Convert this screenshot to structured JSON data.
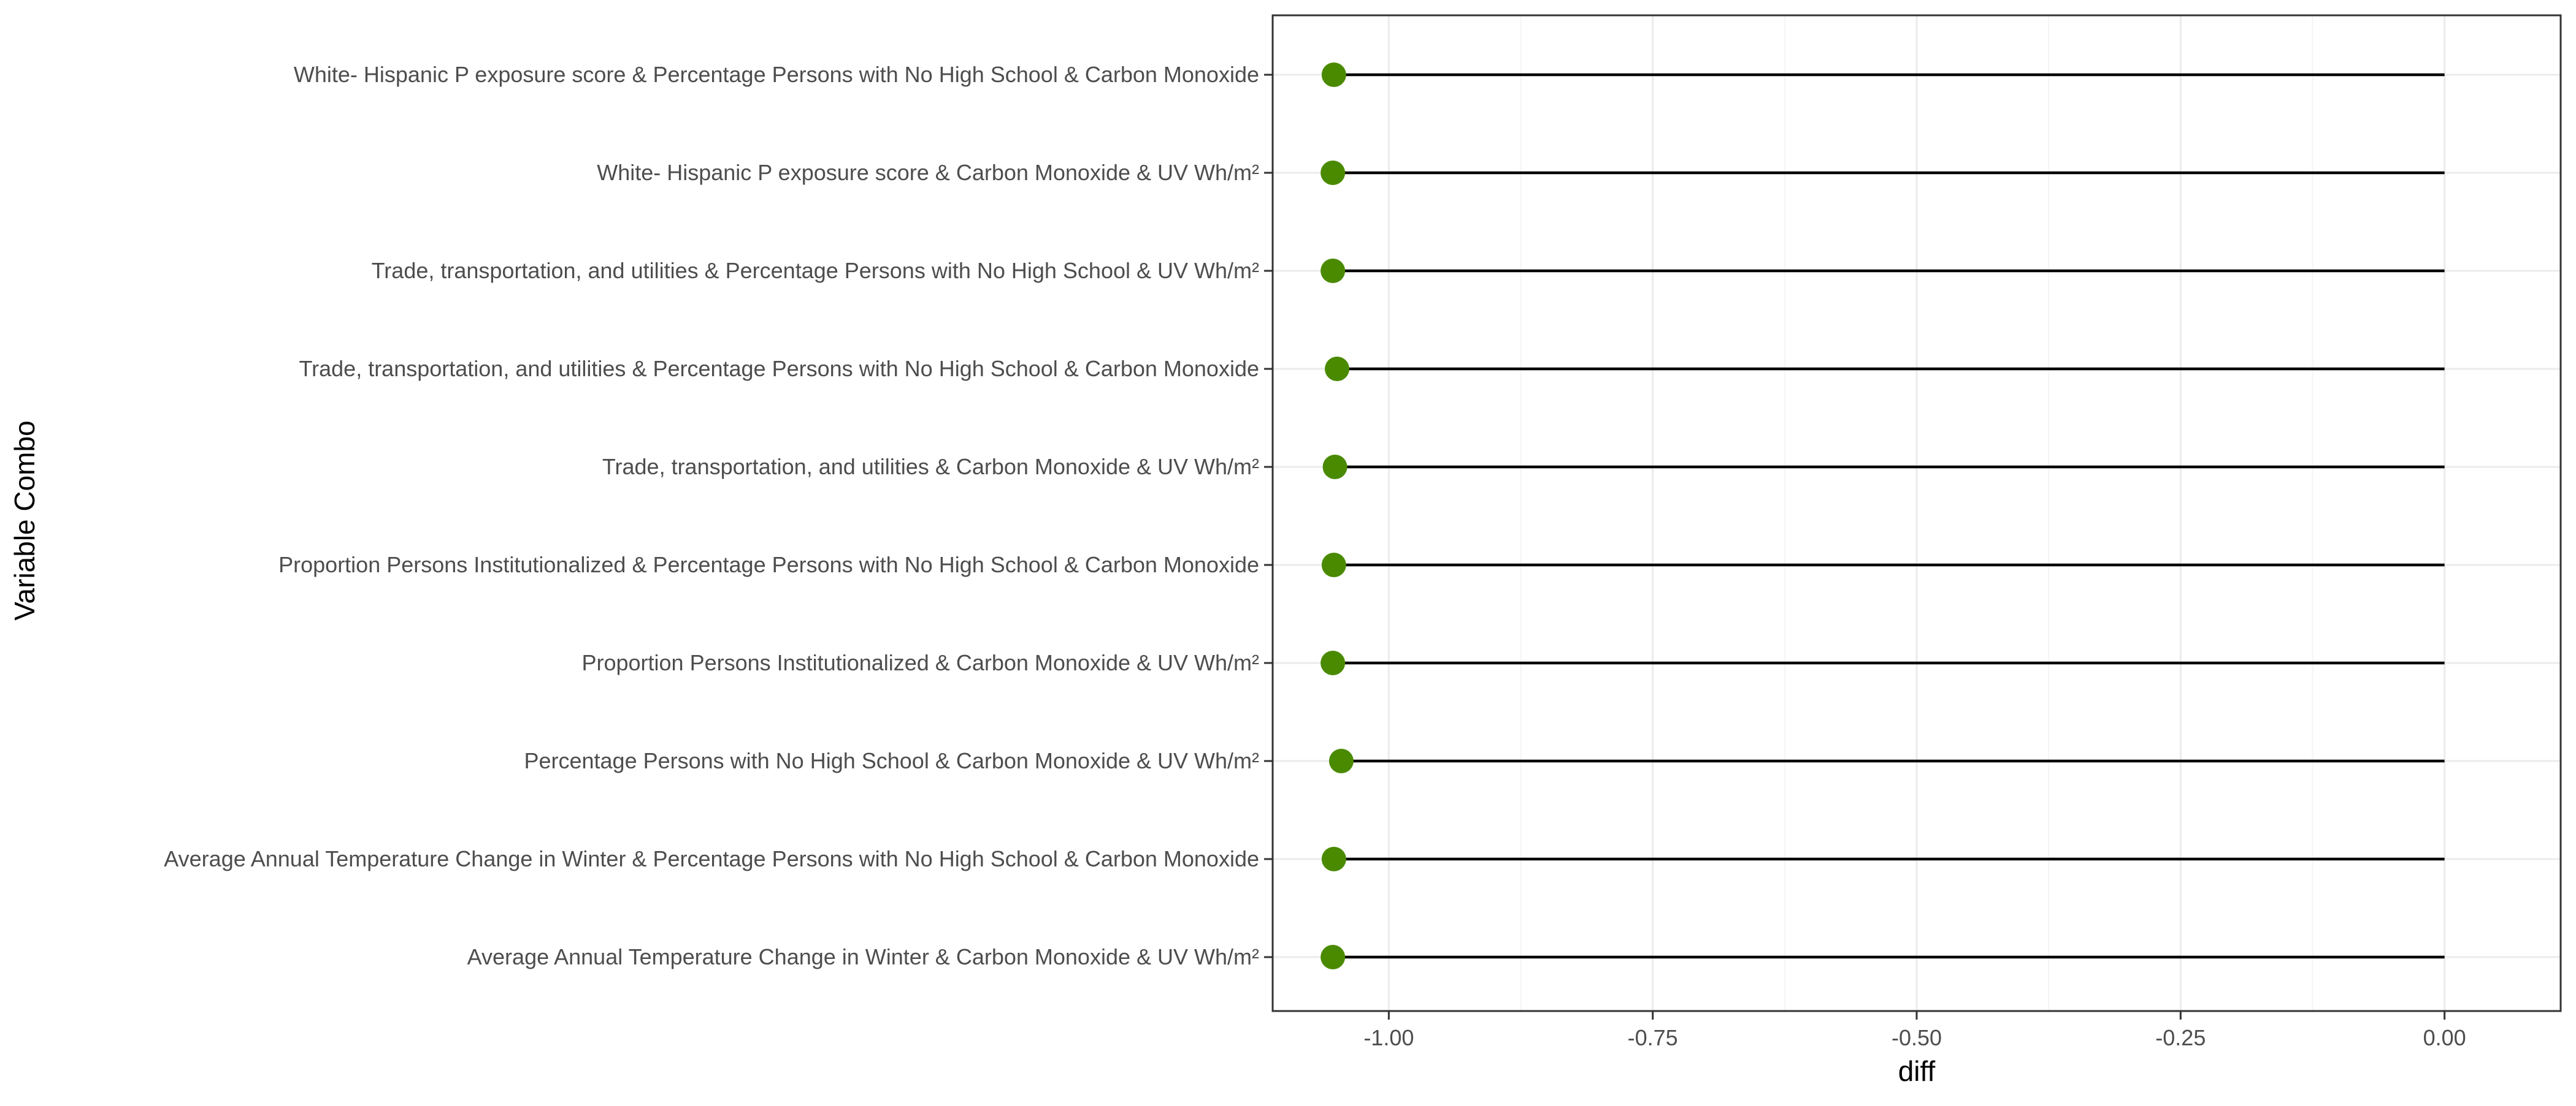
{
  "chart_data": {
    "type": "lollipop",
    "xlabel": "diff",
    "ylabel": "Variable Combo",
    "xlim": [
      -1.11,
      0.11
    ],
    "x_ticks": [
      -1.0,
      -0.75,
      -0.5,
      -0.25,
      0.0
    ],
    "x_tick_labels": [
      "-1.00",
      "-0.75",
      "-0.50",
      "-0.25",
      "0.00"
    ],
    "grid": true,
    "baseline": 0,
    "categories": [
      "White- Hispanic P exposure score & Percentage Persons with No High School & Carbon Monoxide",
      "White- Hispanic P exposure score & Carbon Monoxide & UV Wh/m²",
      "Trade, transportation, and utilities & Percentage Persons with No High School & UV Wh/m²",
      "Trade, transportation, and utilities & Percentage Persons with No High School & Carbon Monoxide",
      "Trade, transportation, and utilities & Carbon Monoxide & UV Wh/m²",
      "Proportion Persons Institutionalized & Percentage Persons with No High School & Carbon Monoxide",
      "Proportion Persons Institutionalized & Carbon Monoxide & UV Wh/m²",
      "Percentage Persons with No High School & Carbon Monoxide & UV Wh/m²",
      "Average Annual Temperature Change in Winter & Percentage Persons with No High School & Carbon Monoxide",
      "Average Annual Temperature Change in Winter & Carbon Monoxide & UV Wh/m²"
    ],
    "values": [
      -1.052,
      -1.053,
      -1.053,
      -1.049,
      -1.051,
      -1.052,
      -1.053,
      -1.045,
      -1.052,
      -1.053
    ],
    "colors": {
      "point": "#4a8a00",
      "segment": "#000000",
      "grid_major": "#ebebeb",
      "grid_minor": "#f4f4f4",
      "panel_border": "#333333"
    }
  }
}
